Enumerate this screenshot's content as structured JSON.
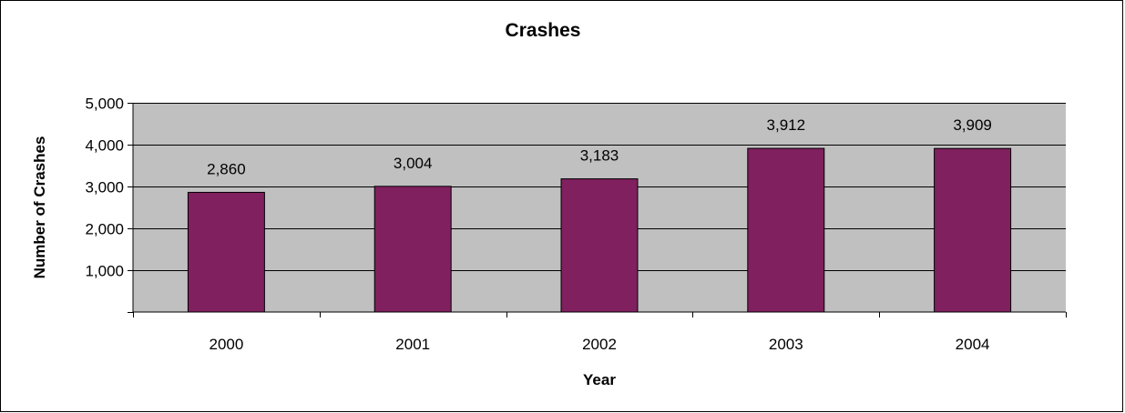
{
  "chart_data": {
    "type": "bar",
    "title": "Crashes",
    "xlabel": "Year",
    "ylabel": "Number of Crashes",
    "categories": [
      "2000",
      "2001",
      "2002",
      "2003",
      "2004"
    ],
    "values": [
      2860,
      3004,
      3183,
      3912,
      3909
    ],
    "data_labels": [
      "2,860",
      "3,004",
      "3,183",
      "3,912",
      "3,909"
    ],
    "y_ticks": [
      0,
      1000,
      2000,
      3000,
      4000,
      5000
    ],
    "y_tick_labels": [
      "",
      "1,000",
      "2,000",
      "3,000",
      "4,000",
      "5,000"
    ],
    "ylim": [
      0,
      5000
    ],
    "grid": true,
    "legend": "none",
    "colors": {
      "bar": "#80205f",
      "plot_background": "#c0c0c0"
    }
  }
}
